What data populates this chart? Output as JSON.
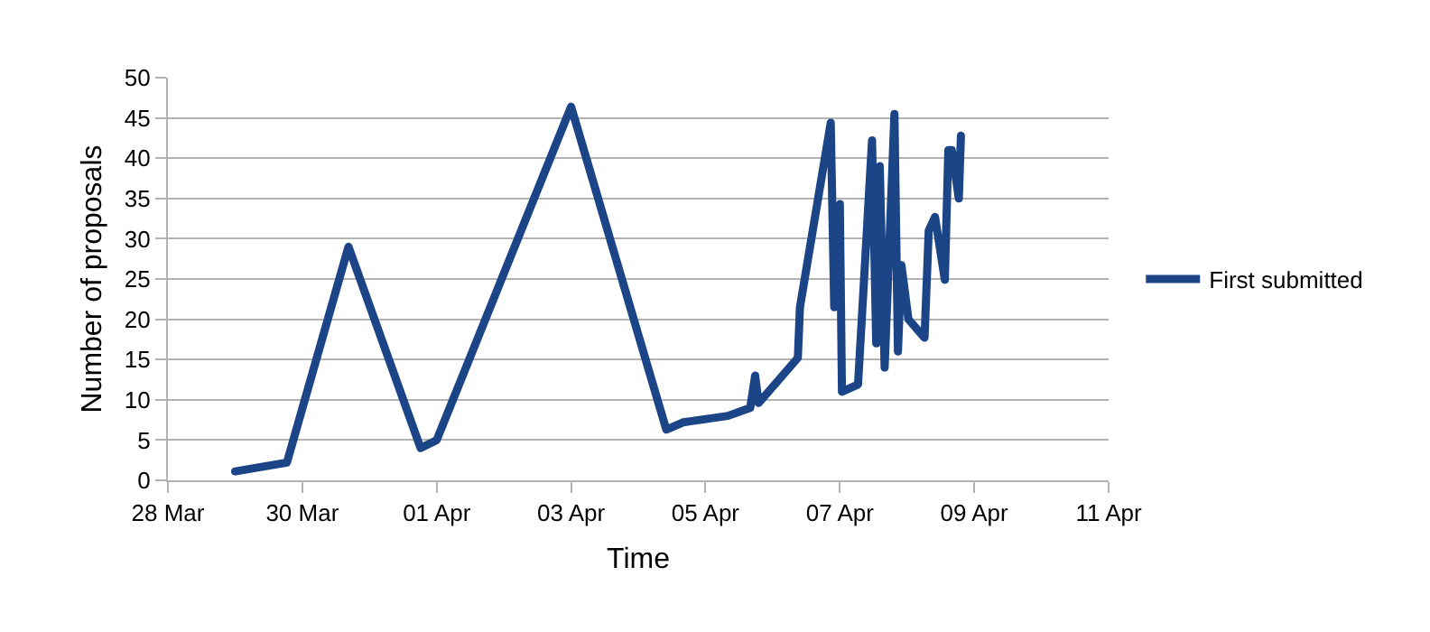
{
  "chart_data": {
    "type": "line",
    "xlabel": "Time",
    "ylabel": "Number of proposals",
    "x": [
      "--03-29T00:00",
      "--03-29T18:30",
      "--03-30T16:30",
      "--03-31T18:15",
      "--04-01T00:00",
      "--04-03T00:00",
      "--04-04T10:00",
      "--04-04T16:00",
      "--04-05T08:00",
      "--04-05T16:00",
      "--04-05T17:45",
      "--04-05T19:00",
      "--04-06T09:00",
      "--04-06T09:45",
      "--04-06T20:45",
      "--04-06T22:00",
      "--04-07T00:00",
      "--04-07T00:45",
      "--04-07T06:30",
      "--04-07T11:30",
      "--04-07T13:00",
      "--04-07T14:15",
      "--04-07T16:00",
      "--04-07T19:30",
      "--04-07T20:45",
      "--04-07T22:00",
      "--04-08T00:30",
      "--04-08T06:15",
      "--04-08T07:45",
      "--04-08T10:00",
      "--04-08T13:30",
      "--04-08T14:45",
      "--04-08T16:00",
      "--04-08T18:30",
      "--04-08T19:15"
    ],
    "series": [
      {
        "name": "First submitted",
        "color": "#1c4587",
        "values": [
          1.1,
          2.2,
          29,
          4,
          5,
          46.4,
          6.3,
          7.2,
          8,
          9,
          13,
          9.6,
          15.2,
          21.5,
          44.4,
          21.5,
          34.3,
          11,
          11.9,
          42.2,
          17,
          39,
          14,
          45.5,
          16,
          26.7,
          20,
          17.7,
          31,
          32.7,
          24.9,
          41,
          41,
          35,
          42.8
        ]
      }
    ],
    "xlim": [
      "--03-28",
      "--04-11"
    ],
    "xticks": [
      {
        "value": "--03-28",
        "label": "28 Mar"
      },
      {
        "value": "--03-30",
        "label": "30 Mar"
      },
      {
        "value": "--04-01",
        "label": "01 Apr"
      },
      {
        "value": "--04-03",
        "label": "03 Apr"
      },
      {
        "value": "--04-05",
        "label": "05 Apr"
      },
      {
        "value": "--04-07",
        "label": "07 Apr"
      },
      {
        "value": "--04-09",
        "label": "09 Apr"
      },
      {
        "value": "--04-11",
        "label": "11 Apr"
      }
    ],
    "ylim": [
      0,
      50
    ],
    "yticks": [
      0,
      5,
      10,
      15,
      20,
      25,
      30,
      35,
      40,
      45,
      50
    ],
    "grid": "y",
    "legend": "right",
    "marker": "none",
    "line_style": "solid"
  }
}
